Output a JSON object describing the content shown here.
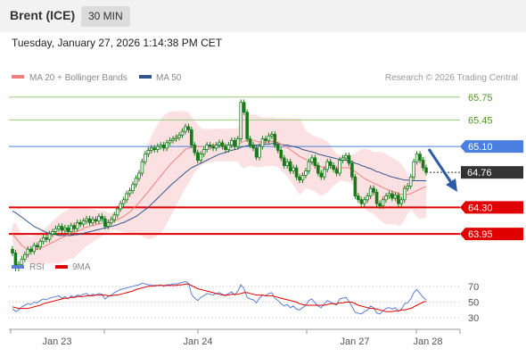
{
  "header": {
    "instrument": "Brent (ICE)",
    "timeframe": "30 MIN"
  },
  "datetime": "Tuesday, January 27, 2026 1:14:38 PM CET",
  "legend": {
    "ma20_bb": "MA 20 + Bollinger Bands",
    "ma50": "MA 50",
    "credit": "Research © 2026 Trading Central"
  },
  "rsi_legend": {
    "rsi": "RSI",
    "ma9": "9MA"
  },
  "colors": {
    "candle": "#1a7a1a",
    "ma20": "#f08080",
    "bands": "#fadcdc",
    "ma50": "#33558b",
    "support": "#e00000",
    "pivot": "#4a7fe0",
    "resistance": "#9acc80",
    "current": "#333333",
    "rsi": "#5b7fd6",
    "rsi_ma": "#e00000"
  },
  "chart_data": {
    "type": "candlestick",
    "x_ticks": [
      "Jan 23",
      "Jan 24",
      "Jan 27",
      "Jan 28"
    ],
    "ylim": [
      63.6,
      65.9
    ],
    "levels": [
      {
        "value": 65.75,
        "label": "65.75",
        "kind": "resistance"
      },
      {
        "value": 65.45,
        "label": "65.45",
        "kind": "resistance"
      },
      {
        "value": 65.1,
        "label": "65.10",
        "kind": "pivot"
      },
      {
        "value": 64.76,
        "label": "64.76",
        "kind": "current"
      },
      {
        "value": 64.3,
        "label": "64.30",
        "kind": "support"
      },
      {
        "value": 63.95,
        "label": "63.95",
        "kind": "support"
      }
    ],
    "close": [
      63.7,
      63.5,
      63.55,
      63.62,
      63.68,
      63.75,
      63.72,
      63.8,
      63.78,
      63.85,
      63.9,
      63.88,
      63.95,
      63.98,
      64.02,
      64.05,
      64.0,
      64.03,
      63.98,
      64.06,
      64.02,
      64.1,
      64.08,
      64.12,
      64.15,
      64.1,
      64.14,
      64.12,
      64.18,
      64.15,
      64.05,
      64.1,
      64.14,
      64.2,
      64.28,
      64.35,
      64.4,
      64.48,
      64.52,
      64.6,
      64.68,
      64.75,
      64.9,
      65.0,
      65.05,
      65.08,
      65.06,
      65.1,
      65.12,
      65.08,
      65.15,
      65.18,
      65.2,
      65.22,
      65.25,
      65.3,
      65.36,
      65.32,
      65.12,
      65.02,
      64.92,
      65.0,
      65.06,
      65.12,
      65.1,
      65.08,
      65.12,
      65.15,
      65.1,
      65.06,
      65.12,
      65.18,
      65.1,
      65.2,
      65.68,
      65.55,
      65.2,
      65.12,
      65.08,
      64.96,
      65.1,
      65.2,
      65.18,
      65.24,
      65.26,
      65.12,
      65.05,
      64.95,
      64.85,
      64.9,
      64.78,
      64.82,
      64.7,
      64.66,
      64.72,
      64.78,
      64.9,
      64.95,
      64.85,
      64.75,
      64.7,
      64.8,
      64.9,
      64.85,
      64.8,
      64.75,
      64.92,
      64.95,
      64.98,
      64.88,
      64.7,
      64.45,
      64.4,
      64.35,
      64.4,
      64.45,
      64.55,
      64.5,
      64.35,
      64.32,
      64.4,
      64.45,
      64.48,
      64.42,
      64.46,
      64.35,
      64.4,
      64.55,
      64.58,
      64.7,
      64.9,
      65.0,
      64.92,
      64.82,
      64.76
    ],
    "ma20": [
      63.95,
      63.9,
      63.85,
      63.8,
      63.77,
      63.75,
      63.74,
      63.74,
      63.75,
      63.76,
      63.78,
      63.8,
      63.82,
      63.84,
      63.86,
      63.88,
      63.9,
      63.92,
      63.94,
      63.96,
      63.97,
      63.99,
      64.0,
      64.02,
      64.04,
      64.05,
      64.06,
      64.07,
      64.08,
      64.09,
      64.1,
      64.1,
      64.11,
      64.12,
      64.14,
      64.16,
      64.18,
      64.21,
      64.24,
      64.28,
      64.32,
      64.36,
      64.41,
      64.46,
      64.51,
      64.56,
      64.61,
      64.66,
      64.71,
      64.76,
      64.81,
      64.86,
      64.9,
      64.94,
      64.98,
      65.02,
      65.06,
      65.08,
      65.09,
      65.1,
      65.1,
      65.1,
      65.1,
      65.11,
      65.11,
      65.12,
      65.12,
      65.12,
      65.12,
      65.12,
      65.12,
      65.12,
      65.12,
      65.12,
      65.15,
      65.17,
      65.18,
      65.18,
      65.18,
      65.17,
      65.16,
      65.16,
      65.16,
      65.16,
      65.17,
      65.16,
      65.15,
      65.13,
      65.11,
      65.09,
      65.06,
      65.03,
      65.0,
      64.97,
      64.95,
      64.93,
      64.91,
      64.89,
      64.87,
      64.85,
      64.83,
      64.83,
      64.83,
      64.83,
      64.82,
      64.81,
      64.82,
      64.82,
      64.82,
      64.82,
      64.8,
      64.77,
      64.74,
      64.71,
      64.68,
      64.66,
      64.64,
      64.62,
      64.6,
      64.58,
      64.56,
      64.54,
      64.53,
      64.51,
      64.5,
      64.48,
      64.47,
      64.47,
      64.47,
      64.48,
      64.5,
      64.52,
      64.54,
      64.56,
      64.57
    ],
    "ma50": [
      64.25,
      64.23,
      64.2,
      64.17,
      64.14,
      64.11,
      64.08,
      64.05,
      64.03,
      64.01,
      63.99,
      63.97,
      63.96,
      63.95,
      63.94,
      63.93,
      63.93,
      63.93,
      63.93,
      63.93,
      63.94,
      63.94,
      63.95,
      63.96,
      63.97,
      63.98,
      63.99,
      64.0,
      64.01,
      64.02,
      64.03,
      64.04,
      64.05,
      64.06,
      64.07,
      64.09,
      64.1,
      64.12,
      64.14,
      64.16,
      64.18,
      64.21,
      64.24,
      64.27,
      64.3,
      64.34,
      64.38,
      64.42,
      64.46,
      64.5,
      64.54,
      64.58,
      64.62,
      64.65,
      64.69,
      64.72,
      64.76,
      64.79,
      64.82,
      64.84,
      64.86,
      64.88,
      64.9,
      64.92,
      64.94,
      64.96,
      64.98,
      65.0,
      65.01,
      65.02,
      65.04,
      65.05,
      65.06,
      65.07,
      65.09,
      65.1,
      65.11,
      65.11,
      65.12,
      65.12,
      65.12,
      65.13,
      65.13,
      65.13,
      65.14,
      65.14,
      65.13,
      65.13,
      65.12,
      65.12,
      65.11,
      65.1,
      65.09,
      65.08,
      65.06,
      65.05,
      65.04,
      65.03,
      65.02,
      65.0,
      64.99,
      64.98,
      64.97,
      64.96,
      64.95,
      64.94,
      64.93,
      64.92,
      64.92,
      64.91,
      64.9,
      64.88,
      64.87,
      64.85,
      64.84,
      64.82,
      64.81,
      64.79,
      64.77,
      64.76,
      64.74,
      64.73,
      64.71,
      64.7,
      64.69,
      64.68,
      64.67,
      64.66,
      64.66,
      64.65,
      64.65,
      64.65,
      64.65,
      64.65,
      64.65
    ],
    "rsi": {
      "ticks": [
        70,
        50,
        30
      ],
      "ylim": [
        20,
        80
      ],
      "rsi": [
        42,
        38,
        40,
        44,
        46,
        48,
        47,
        50,
        49,
        52,
        54,
        53,
        55,
        56,
        57,
        58,
        55,
        57,
        54,
        58,
        56,
        59,
        58,
        60,
        61,
        58,
        60,
        59,
        61,
        60,
        54,
        57,
        59,
        62,
        64,
        66,
        67,
        68,
        69,
        70,
        71,
        72,
        74,
        73,
        72,
        72,
        70,
        71,
        72,
        70,
        72,
        72,
        73,
        73,
        74,
        75,
        76,
        74,
        60,
        55,
        52,
        56,
        58,
        61,
        60,
        59,
        61,
        62,
        60,
        58,
        61,
        63,
        59,
        64,
        72,
        67,
        56,
        54,
        53,
        49,
        55,
        59,
        58,
        61,
        62,
        55,
        52,
        48,
        45,
        47,
        43,
        45,
        41,
        40,
        43,
        46,
        52,
        54,
        49,
        45,
        43,
        48,
        52,
        50,
        48,
        46,
        54,
        55,
        56,
        51,
        44,
        37,
        36,
        35,
        38,
        40,
        45,
        43,
        36,
        35,
        39,
        42,
        43,
        41,
        43,
        38,
        41,
        48,
        49,
        54,
        62,
        66,
        61,
        56,
        53
      ],
      "ma9": [
        44,
        43,
        42,
        42,
        42,
        42,
        43,
        44,
        45,
        46,
        48,
        49,
        50,
        51,
        52,
        53,
        54,
        55,
        55,
        56,
        56,
        57,
        57,
        57,
        58,
        58,
        58,
        59,
        59,
        59,
        59,
        58,
        58,
        59,
        59,
        60,
        61,
        62,
        63,
        64,
        66,
        67,
        68,
        69,
        70,
        70,
        71,
        71,
        71,
        71,
        71,
        71,
        71,
        71,
        72,
        72,
        73,
        73,
        71,
        69,
        67,
        66,
        65,
        64,
        63,
        62,
        61,
        60,
        59,
        59,
        59,
        60,
        60,
        60,
        61,
        62,
        62,
        61,
        60,
        59,
        59,
        59,
        58,
        58,
        58,
        57,
        56,
        55,
        54,
        53,
        52,
        51,
        50,
        48,
        47,
        46,
        46,
        46,
        46,
        46,
        46,
        46,
        47,
        48,
        48,
        48,
        49,
        49,
        50,
        50,
        50,
        48,
        46,
        45,
        44,
        43,
        42,
        42,
        41,
        40,
        39,
        38,
        38,
        38,
        39,
        39,
        40,
        40,
        41,
        42,
        44,
        46,
        48,
        50,
        51
      ]
    }
  }
}
